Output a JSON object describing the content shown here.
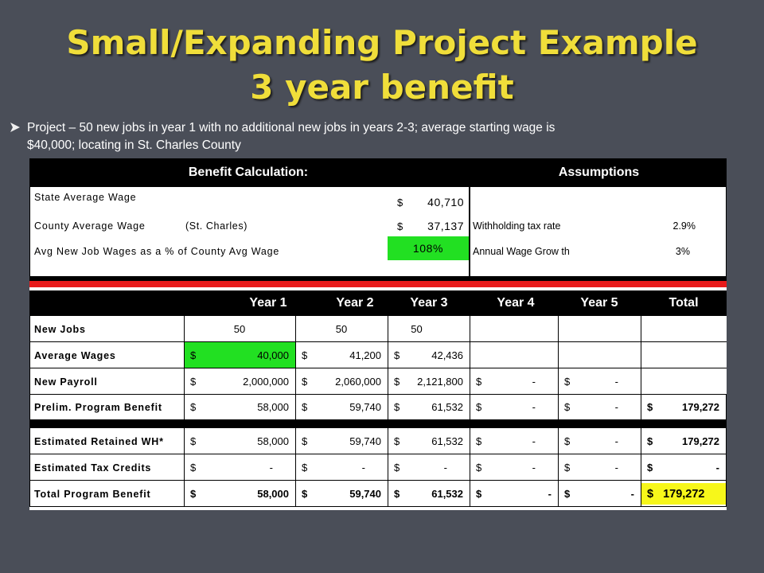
{
  "slide": {
    "title_line1": "Small/Expanding Project Example",
    "title_line2": "3 year benefit",
    "subtitle_line1": "Project – 50 new jobs in year 1 with no additional new jobs in years 2-3; average starting wage is",
    "subtitle_line2": "$40,000; locating in St. Charles County"
  },
  "benefit": {
    "header": "Benefit Calculation:",
    "state_label": "State Average Wage",
    "state_value": "40,710",
    "county_label": "County Average Wage",
    "county_note": "(St. Charles)",
    "county_value": "37,137",
    "pct_label": "Avg New Job Wages as a % of County Avg Wage",
    "pct_value": "108%",
    "dollar": "$"
  },
  "assumptions": {
    "header": "Assumptions",
    "withholding_label": "Withholding tax rate",
    "withholding_value": "2.9%",
    "growth_label": "Annual Wage Grow th",
    "growth_value": "3%"
  },
  "table": {
    "columns": [
      "Year 1",
      "Year 2",
      "Year 3",
      "Year 4",
      "Year 5",
      "Total"
    ],
    "new_jobs": {
      "label": "New Jobs",
      "values": [
        "50",
        "50",
        "50"
      ]
    },
    "avg_wages": {
      "label": "Average Wages",
      "values": [
        "40,000",
        "41,200",
        "42,436"
      ]
    },
    "new_payroll": {
      "label": "New Payroll",
      "values": [
        "2,000,000",
        "2,060,000",
        "2,121,800",
        "-",
        "-"
      ]
    },
    "prelim": {
      "label": "Prelim. Program Benefit",
      "values": [
        "58,000",
        "59,740",
        "61,532",
        "-",
        "-",
        "179,272"
      ]
    },
    "retained": {
      "label": "Estimated Retained WH*",
      "values": [
        "58,000",
        "59,740",
        "61,532",
        "-",
        "-",
        "179,272"
      ]
    },
    "credits": {
      "label": "Estimated Tax Credits",
      "values": [
        "-",
        "-",
        "-",
        "-",
        "-",
        "-"
      ]
    },
    "total": {
      "label": "Total Program Benefit",
      "values": [
        "58,000",
        "59,740",
        "61,532",
        "-",
        "-",
        "179,272"
      ]
    },
    "dollar": "$"
  },
  "colors": {
    "background": "#4a4e58",
    "title": "#f0de3a",
    "highlight_green": "#22e022",
    "highlight_yellow": "#f7f71a",
    "divider_red": "#e81a1a",
    "bullet": "#f0f0f0"
  }
}
